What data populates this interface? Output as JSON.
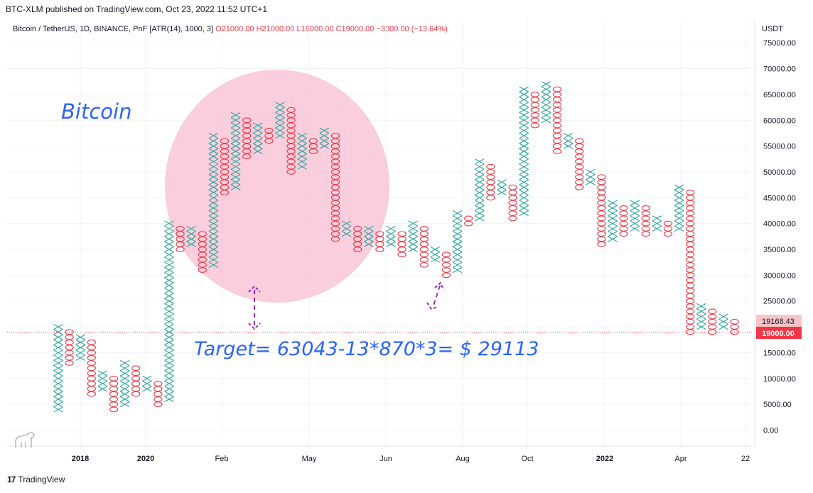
{
  "header": {
    "published_line": "BTC-XLM published on TradingView.com, Oct 23, 2022 11:52 UTC+1"
  },
  "legend": {
    "symbol": "Bitcoin / TetherUS, 1D, BINANCE, PnF [ATR(14), 1000, 3]",
    "open": "O21000.00",
    "high": "H21000.00",
    "low": "L19000.00",
    "close": "C19000.00",
    "change": "−3000.00 (−13.64%)"
  },
  "annotations": {
    "title": "Bitcoin",
    "target": "Target= 63043-13*870*3= $ 29113"
  },
  "footer": {
    "brand": "TradingView",
    "logo": "tradingview-logo-icon"
  },
  "colors": {
    "x_color": "#26a69a",
    "o_color": "#f23645",
    "highlight": "#f8bbd0",
    "arrow": "#9c27b0",
    "annotation": "#2962ff"
  },
  "chart_data": {
    "type": "point-and-figure",
    "box_size": 1000,
    "reversal": 3,
    "y_axis_unit": "USDT",
    "ylim": [
      0,
      77000
    ],
    "y_ticks": [
      "75000.00",
      "70000.00",
      "65000.00",
      "60000.00",
      "55000.00",
      "50000.00",
      "45000.00",
      "40000.00",
      "35000.00",
      "30000.00",
      "25000.00",
      "20000.00",
      "15000.00",
      "10000.00",
      "5000.00",
      "0.00"
    ],
    "x_ticks": [
      "2018",
      "2020",
      "Feb",
      "May",
      "Jun",
      "Aug",
      "Oct",
      "2022",
      "Apr",
      "22"
    ],
    "x_ticks_bold": [
      "2018",
      "2020",
      "2022"
    ],
    "price_labels": {
      "last": "19168.43",
      "close": "19000.00"
    },
    "columns": [
      {
        "t": "X",
        "lo": 4000,
        "hi": 20000
      },
      {
        "t": "O",
        "lo": 13000,
        "hi": 19000
      },
      {
        "t": "X",
        "lo": 14000,
        "hi": 18000
      },
      {
        "t": "O",
        "lo": 7000,
        "hi": 17000
      },
      {
        "t": "X",
        "lo": 8000,
        "hi": 11000
      },
      {
        "t": "O",
        "lo": 4000,
        "hi": 10000
      },
      {
        "t": "X",
        "lo": 5000,
        "hi": 13000
      },
      {
        "t": "O",
        "lo": 7000,
        "hi": 12000
      },
      {
        "t": "X",
        "lo": 8000,
        "hi": 10000
      },
      {
        "t": "O",
        "lo": 5000,
        "hi": 9000
      },
      {
        "t": "X",
        "lo": 6000,
        "hi": 40000
      },
      {
        "t": "O",
        "lo": 35000,
        "hi": 39000
      },
      {
        "t": "X",
        "lo": 36000,
        "hi": 39000
      },
      {
        "t": "O",
        "lo": 31000,
        "hi": 38000
      },
      {
        "t": "X",
        "lo": 32000,
        "hi": 57000
      },
      {
        "t": "O",
        "lo": 46000,
        "hi": 56000
      },
      {
        "t": "X",
        "lo": 47000,
        "hi": 61000
      },
      {
        "t": "O",
        "lo": 53000,
        "hi": 60000
      },
      {
        "t": "X",
        "lo": 54000,
        "hi": 59000
      },
      {
        "t": "O",
        "lo": 56000,
        "hi": 58000
      },
      {
        "t": "X",
        "lo": 57000,
        "hi": 63000
      },
      {
        "t": "O",
        "lo": 50000,
        "hi": 62000
      },
      {
        "t": "X",
        "lo": 51000,
        "hi": 57000
      },
      {
        "t": "O",
        "lo": 54000,
        "hi": 56000
      },
      {
        "t": "X",
        "lo": 55000,
        "hi": 58000
      },
      {
        "t": "O",
        "lo": 37000,
        "hi": 57000
      },
      {
        "t": "X",
        "lo": 38000,
        "hi": 40000
      },
      {
        "t": "O",
        "lo": 35000,
        "hi": 39000
      },
      {
        "t": "X",
        "lo": 36000,
        "hi": 39000
      },
      {
        "t": "O",
        "lo": 35000,
        "hi": 38000
      },
      {
        "t": "X",
        "lo": 36000,
        "hi": 39000
      },
      {
        "t": "O",
        "lo": 34000,
        "hi": 38000
      },
      {
        "t": "X",
        "lo": 35000,
        "hi": 40000
      },
      {
        "t": "O",
        "lo": 32000,
        "hi": 39000
      },
      {
        "t": "X",
        "lo": 33000,
        "hi": 35000
      },
      {
        "t": "O",
        "lo": 30000,
        "hi": 34000
      },
      {
        "t": "X",
        "lo": 31000,
        "hi": 42000
      },
      {
        "t": "O",
        "lo": 40000,
        "hi": 41000
      },
      {
        "t": "X",
        "lo": 41000,
        "hi": 52000
      },
      {
        "t": "O",
        "lo": 45000,
        "hi": 51000
      },
      {
        "t": "X",
        "lo": 46000,
        "hi": 48000
      },
      {
        "t": "O",
        "lo": 41000,
        "hi": 47000
      },
      {
        "t": "X",
        "lo": 42000,
        "hi": 66000
      },
      {
        "t": "O",
        "lo": 59000,
        "hi": 65000
      },
      {
        "t": "X",
        "lo": 60000,
        "hi": 67000
      },
      {
        "t": "O",
        "lo": 54000,
        "hi": 66000
      },
      {
        "t": "X",
        "lo": 55000,
        "hi": 57000
      },
      {
        "t": "O",
        "lo": 47000,
        "hi": 56000
      },
      {
        "t": "X",
        "lo": 48000,
        "hi": 50000
      },
      {
        "t": "O",
        "lo": 36000,
        "hi": 49000
      },
      {
        "t": "X",
        "lo": 37000,
        "hi": 44000
      },
      {
        "t": "O",
        "lo": 38000,
        "hi": 43000
      },
      {
        "t": "X",
        "lo": 39000,
        "hi": 44000
      },
      {
        "t": "O",
        "lo": 38000,
        "hi": 43000
      },
      {
        "t": "X",
        "lo": 39000,
        "hi": 41000
      },
      {
        "t": "O",
        "lo": 38000,
        "hi": 40000
      },
      {
        "t": "X",
        "lo": 39000,
        "hi": 47000
      },
      {
        "t": "O",
        "lo": 19000,
        "hi": 46000
      },
      {
        "t": "X",
        "lo": 20000,
        "hi": 24000
      },
      {
        "t": "O",
        "lo": 19000,
        "hi": 23000
      },
      {
        "t": "X",
        "lo": 20000,
        "hi": 22000
      },
      {
        "t": "O",
        "lo": 19000,
        "hi": 21000
      }
    ]
  }
}
